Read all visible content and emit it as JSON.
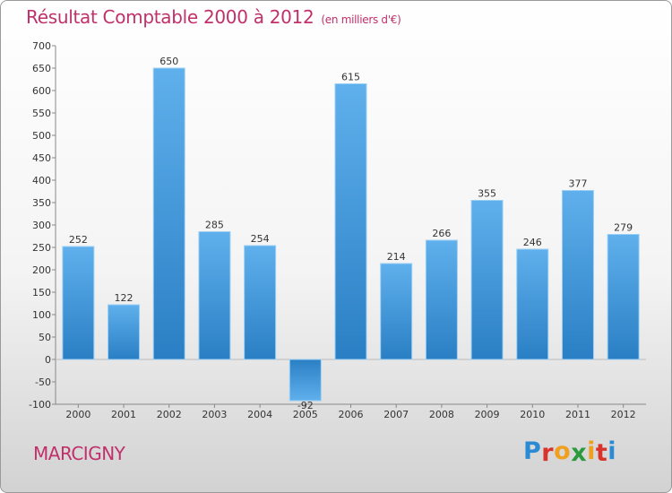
{
  "title": "Résultat Comptable 2000 à 2012",
  "subtitle": "(en milliers d'€)",
  "city": "MARCIGNY",
  "logo": {
    "letters": [
      "P",
      "r",
      "o",
      "x",
      "i",
      "t",
      "i"
    ]
  },
  "colors": {
    "accent": "#c0306a",
    "bar_light": "#5fb0ec",
    "bar_dark": "#2a7fc4",
    "logo": [
      "#2a8ad4",
      "#d8342c",
      "#f0a020",
      "#2a9a3c",
      "#f0a020",
      "#d8342c",
      "#2a8ad4"
    ]
  },
  "chart_data": {
    "type": "bar",
    "title": "Résultat Comptable 2000 à 2012",
    "subtitle": "(en milliers d'€)",
    "categories": [
      "2000",
      "2001",
      "2002",
      "2003",
      "2004",
      "2005",
      "2006",
      "2007",
      "2008",
      "2009",
      "2010",
      "2011",
      "2012"
    ],
    "values": [
      252,
      122,
      650,
      285,
      254,
      -92,
      615,
      214,
      266,
      355,
      246,
      377,
      279
    ],
    "xlabel": "",
    "ylabel": "",
    "ylim": [
      -100,
      700
    ],
    "yticks": [
      -100,
      -50,
      0,
      50,
      100,
      150,
      200,
      250,
      300,
      350,
      400,
      450,
      500,
      550,
      600,
      650,
      700
    ],
    "grid": false,
    "legend": "none"
  }
}
